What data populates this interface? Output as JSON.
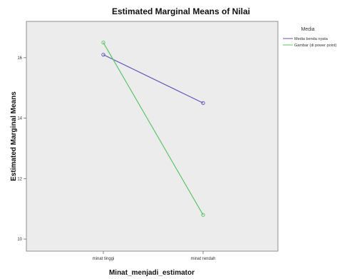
{
  "chart_data": {
    "type": "line",
    "title": "Estimated Marginal Means of Nilai",
    "xlabel": "Minat_menjadi_estimator",
    "ylabel": "Estimated Marginal Means",
    "categories": [
      "minat tinggi",
      "minat rendah"
    ],
    "yticks": [
      "16",
      "14",
      "12",
      "10"
    ],
    "ylim": [
      9.6,
      17.2
    ],
    "grid": false,
    "legend_title": "Media",
    "legend_position": "top-right",
    "series": [
      {
        "name": "Media benda nyata",
        "values": [
          16.1,
          14.5
        ],
        "color": "#5a57b8"
      },
      {
        "name": "Gambar (di power point)",
        "values": [
          16.5,
          10.8
        ],
        "color": "#5cc46a"
      }
    ],
    "background_color": "#ececec"
  }
}
